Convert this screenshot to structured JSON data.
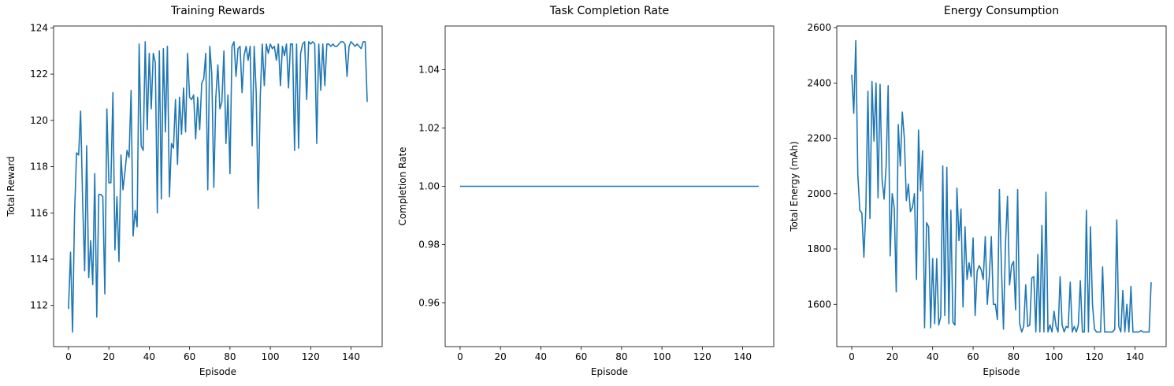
{
  "chart_data": [
    {
      "type": "line",
      "title": "Training Rewards",
      "xlabel": "Episode",
      "ylabel": "Total Reward",
      "color": "#1f77b4",
      "x": [
        0,
        1,
        2,
        3,
        4,
        5,
        6,
        7,
        8,
        9,
        10,
        11,
        12,
        13,
        14,
        15,
        16,
        17,
        18,
        19,
        20,
        21,
        22,
        23,
        24,
        25,
        26,
        27,
        28,
        29,
        30,
        31,
        32,
        33,
        34,
        35,
        36,
        37,
        38,
        39,
        40,
        41,
        42,
        43,
        44,
        45,
        46,
        47,
        48,
        49,
        50,
        51,
        52,
        53,
        54,
        55,
        56,
        57,
        58,
        59,
        60,
        61,
        62,
        63,
        64,
        65,
        66,
        67,
        68,
        69,
        70,
        71,
        72,
        73,
        74,
        75,
        76,
        77,
        78,
        79,
        80,
        81,
        82,
        83,
        84,
        85,
        86,
        87,
        88,
        89,
        90,
        91,
        92,
        93,
        94,
        95,
        96,
        97,
        98,
        99,
        100,
        101,
        102,
        103,
        104,
        105,
        106,
        107,
        108,
        109,
        110,
        111,
        112,
        113,
        114,
        115,
        116,
        117,
        118,
        119,
        120,
        121,
        122,
        123,
        124,
        125,
        126,
        127,
        128,
        129,
        130,
        131,
        132,
        133,
        134,
        135,
        136,
        137,
        138,
        139,
        140,
        141,
        142,
        143,
        144,
        145,
        146,
        147,
        148
      ],
      "values": [
        111.85,
        114.3,
        110.85,
        116,
        118.6,
        118.5,
        120.4,
        116.5,
        113.5,
        118.9,
        113.2,
        114.8,
        112.9,
        117.7,
        111.5,
        116.8,
        116.8,
        116.7,
        112.5,
        120.5,
        117.3,
        117.3,
        121.2,
        114.4,
        116.7,
        113.9,
        118.5,
        117,
        117.8,
        118.7,
        118.4,
        121.3,
        115,
        116.1,
        115.4,
        123.3,
        118.9,
        118.7,
        123.4,
        119.6,
        122.9,
        120.5,
        122.9,
        122.5,
        116,
        123,
        116.6,
        123.1,
        119.5,
        123.2,
        116.7,
        119,
        118.8,
        120.9,
        118.1,
        121,
        119.4,
        121.4,
        119.5,
        122.9,
        121,
        120.9,
        121.1,
        119.2,
        121,
        119.6,
        121.6,
        121.8,
        122.9,
        117,
        123.2,
        122,
        117.1,
        121,
        122.4,
        120.5,
        120.8,
        123,
        119,
        121.1,
        117.7,
        123.2,
        123.4,
        121.9,
        123.1,
        123.2,
        121.2,
        122.8,
        123.2,
        122.6,
        123.2,
        118.9,
        123.2,
        121.2,
        116.2,
        121,
        123.3,
        121.5,
        123.3,
        122.9,
        123.3,
        123.1,
        123.2,
        122.6,
        123.3,
        121.5,
        123.2,
        122.8,
        123.3,
        121.4,
        123.3,
        123.3,
        118.7,
        123.3,
        118.8,
        122.9,
        123.3,
        123.4,
        120.9,
        123.4,
        123.3,
        123.4,
        123.3,
        119,
        123.3,
        121.3,
        123.3,
        121.5,
        123.3,
        123.3,
        123.2,
        123.3,
        123.2,
        123.2,
        123.3,
        123.4,
        123.4,
        123.3,
        121.9,
        123.2,
        123.4,
        123.3,
        123.2,
        123.3,
        123.2,
        123.1,
        123.4,
        123.4,
        120.8
      ],
      "xlim": [
        -7.4,
        155.4
      ],
      "xticks": [
        0,
        20,
        40,
        60,
        80,
        100,
        120,
        140
      ],
      "ylim": [
        110.22,
        124.08
      ],
      "yticks": [
        112,
        114,
        116,
        118,
        120,
        122,
        124
      ]
    },
    {
      "type": "line",
      "title": "Task Completion Rate",
      "xlabel": "Episode",
      "ylabel": "Completion Rate",
      "color": "#1f77b4",
      "x": [
        0,
        1,
        2,
        3,
        4,
        5,
        6,
        7,
        8,
        9,
        10,
        11,
        12,
        13,
        14,
        15,
        16,
        17,
        18,
        19,
        20,
        21,
        22,
        23,
        24,
        25,
        26,
        27,
        28,
        29,
        30,
        31,
        32,
        33,
        34,
        35,
        36,
        37,
        38,
        39,
        40,
        41,
        42,
        43,
        44,
        45,
        46,
        47,
        48,
        49,
        50,
        51,
        52,
        53,
        54,
        55,
        56,
        57,
        58,
        59,
        60,
        61,
        62,
        63,
        64,
        65,
        66,
        67,
        68,
        69,
        70,
        71,
        72,
        73,
        74,
        75,
        76,
        77,
        78,
        79,
        80,
        81,
        82,
        83,
        84,
        85,
        86,
        87,
        88,
        89,
        90,
        91,
        92,
        93,
        94,
        95,
        96,
        97,
        98,
        99,
        100,
        101,
        102,
        103,
        104,
        105,
        106,
        107,
        108,
        109,
        110,
        111,
        112,
        113,
        114,
        115,
        116,
        117,
        118,
        119,
        120,
        121,
        122,
        123,
        124,
        125,
        126,
        127,
        128,
        129,
        130,
        131,
        132,
        133,
        134,
        135,
        136,
        137,
        138,
        139,
        140,
        141,
        142,
        143,
        144,
        145,
        146,
        147,
        148
      ],
      "values": [
        1,
        1,
        1,
        1,
        1,
        1,
        1,
        1,
        1,
        1,
        1,
        1,
        1,
        1,
        1,
        1,
        1,
        1,
        1,
        1,
        1,
        1,
        1,
        1,
        1,
        1,
        1,
        1,
        1,
        1,
        1,
        1,
        1,
        1,
        1,
        1,
        1,
        1,
        1,
        1,
        1,
        1,
        1,
        1,
        1,
        1,
        1,
        1,
        1,
        1,
        1,
        1,
        1,
        1,
        1,
        1,
        1,
        1,
        1,
        1,
        1,
        1,
        1,
        1,
        1,
        1,
        1,
        1,
        1,
        1,
        1,
        1,
        1,
        1,
        1,
        1,
        1,
        1,
        1,
        1,
        1,
        1,
        1,
        1,
        1,
        1,
        1,
        1,
        1,
        1,
        1,
        1,
        1,
        1,
        1,
        1,
        1,
        1,
        1,
        1,
        1,
        1,
        1,
        1,
        1,
        1,
        1,
        1,
        1,
        1,
        1,
        1,
        1,
        1,
        1,
        1,
        1,
        1,
        1,
        1,
        1,
        1,
        1,
        1,
        1,
        1,
        1,
        1,
        1,
        1,
        1,
        1,
        1,
        1,
        1,
        1,
        1,
        1,
        1,
        1,
        1,
        1,
        1,
        1,
        1,
        1,
        1,
        1,
        1
      ],
      "xlim": [
        -7.4,
        155.4
      ],
      "xticks": [
        0,
        20,
        40,
        60,
        80,
        100,
        120,
        140
      ],
      "ylim": [
        0.945,
        1.055
      ],
      "yticks": [
        0.96,
        0.98,
        {
          "value": 1,
          "label": "1.00"
        },
        1.02,
        1.04
      ]
    },
    {
      "type": "line",
      "title": "Energy Consumption",
      "xlabel": "Episode",
      "ylabel": "Total Energy (mAh)",
      "color": "#1f77b4",
      "x": [
        0,
        1,
        2,
        3,
        4,
        5,
        6,
        7,
        8,
        9,
        10,
        11,
        12,
        13,
        14,
        15,
        16,
        17,
        18,
        19,
        20,
        21,
        22,
        23,
        24,
        25,
        26,
        27,
        28,
        29,
        30,
        31,
        32,
        33,
        34,
        35,
        36,
        37,
        38,
        39,
        40,
        41,
        42,
        43,
        44,
        45,
        46,
        47,
        48,
        49,
        50,
        51,
        52,
        53,
        54,
        55,
        56,
        57,
        58,
        59,
        60,
        61,
        62,
        63,
        64,
        65,
        66,
        67,
        68,
        69,
        70,
        71,
        72,
        73,
        74,
        75,
        76,
        77,
        78,
        79,
        80,
        81,
        82,
        83,
        84,
        85,
        86,
        87,
        88,
        89,
        90,
        91,
        92,
        93,
        94,
        95,
        96,
        97,
        98,
        99,
        100,
        101,
        102,
        103,
        104,
        105,
        106,
        107,
        108,
        109,
        110,
        111,
        112,
        113,
        114,
        115,
        116,
        117,
        118,
        119,
        120,
        121,
        122,
        123,
        124,
        125,
        126,
        127,
        128,
        129,
        130,
        131,
        132,
        133,
        134,
        135,
        136,
        137,
        138,
        139,
        140,
        141,
        142,
        143,
        144,
        145,
        146,
        147,
        148
      ],
      "values": [
        2430,
        2290,
        2553,
        2070,
        1940,
        1930,
        1770,
        1950,
        2370,
        1910,
        2405,
        2190,
        2400,
        1985,
        2395,
        2050,
        1980,
        2100,
        2390,
        1775,
        2000,
        1950,
        1645,
        2250,
        2100,
        2295,
        2200,
        1975,
        2035,
        1935,
        1950,
        2000,
        1690,
        2230,
        2010,
        2155,
        1515,
        1895,
        1880,
        1515,
        1765,
        1530,
        1765,
        1525,
        1555,
        2100,
        1560,
        2095,
        1530,
        1940,
        1535,
        1525,
        2020,
        1830,
        1945,
        1590,
        1880,
        1690,
        1750,
        1700,
        1840,
        1560,
        1720,
        1740,
        1725,
        1690,
        1845,
        1600,
        1700,
        1845,
        1600,
        1600,
        1545,
        2015,
        1730,
        1510,
        1820,
        1990,
        1670,
        1740,
        1755,
        1580,
        2015,
        1530,
        1500,
        1520,
        1670,
        1520,
        1525,
        1695,
        1700,
        1500,
        1780,
        1500,
        1885,
        1500,
        2005,
        1500,
        1525,
        1500,
        1575,
        1520,
        1500,
        1700,
        1525,
        1500,
        1520,
        1515,
        1680,
        1500,
        1520,
        1500,
        1525,
        1685,
        1500,
        1500,
        1940,
        1500,
        1880,
        1600,
        1510,
        1500,
        1500,
        1500,
        1735,
        1500,
        1500,
        1500,
        1500,
        1500,
        1510,
        1905,
        1520,
        1500,
        1650,
        1500,
        1600,
        1500,
        1665,
        1500,
        1500,
        1500,
        1500,
        1505,
        1500,
        1500,
        1500,
        1500,
        1680
      ],
      "xlim": [
        -7.4,
        155.4
      ],
      "xticks": [
        0,
        20,
        40,
        60,
        80,
        100,
        120,
        140
      ],
      "ylim": [
        1447,
        2606
      ],
      "yticks": [
        1600,
        1800,
        2000,
        2200,
        2400,
        2600
      ]
    }
  ]
}
